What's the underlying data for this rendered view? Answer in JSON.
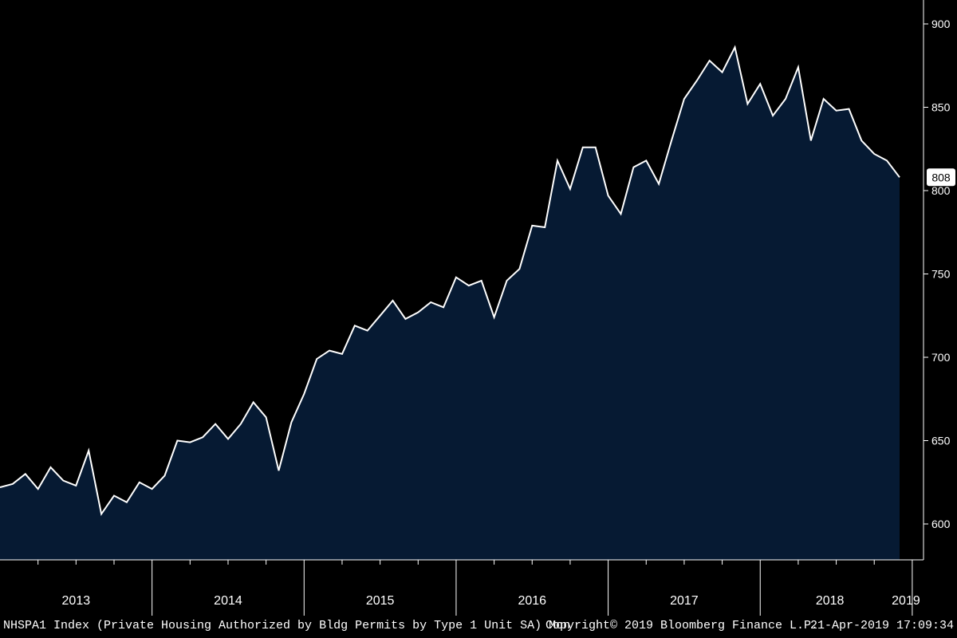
{
  "chart_data": {
    "type": "area",
    "title": "",
    "xlabel": "",
    "ylabel": "",
    "ylim": [
      575,
      905
    ],
    "y_ticks": [
      600,
      650,
      700,
      750,
      800,
      850,
      900
    ],
    "x_year_labels": [
      "2013",
      "2014",
      "2015",
      "2016",
      "2017",
      "2018",
      "2019"
    ],
    "grid": false,
    "legend": "none",
    "series": [
      {
        "values": [
          622,
          624,
          630,
          621,
          634,
          626,
          623,
          644,
          606,
          617,
          613,
          625,
          621,
          629,
          650,
          649,
          652,
          660,
          651,
          660,
          673,
          664,
          632,
          661,
          678,
          699,
          704,
          702,
          719,
          716,
          725,
          734,
          723,
          727,
          733,
          730,
          748,
          743,
          746,
          724,
          746,
          753,
          779,
          778,
          818,
          801,
          826,
          826,
          797,
          786,
          814,
          818,
          804,
          830,
          855,
          866,
          878,
          871,
          886,
          852,
          864,
          845,
          855,
          874,
          830,
          855,
          848,
          849,
          830,
          822,
          818,
          808
        ]
      }
    ],
    "last_value_label": "808",
    "colors": {
      "background": "#000000",
      "area_fill": "#061a33",
      "line": "#ffffff"
    }
  },
  "footer": {
    "left": "NHSPA1 Index (Private Housing Authorized by Bldg Permits by Type 1 Unit SA)  Mon",
    "center": "Copyright© 2019 Bloomberg Finance L.P.",
    "right": "21-Apr-2019 17:09:34"
  }
}
